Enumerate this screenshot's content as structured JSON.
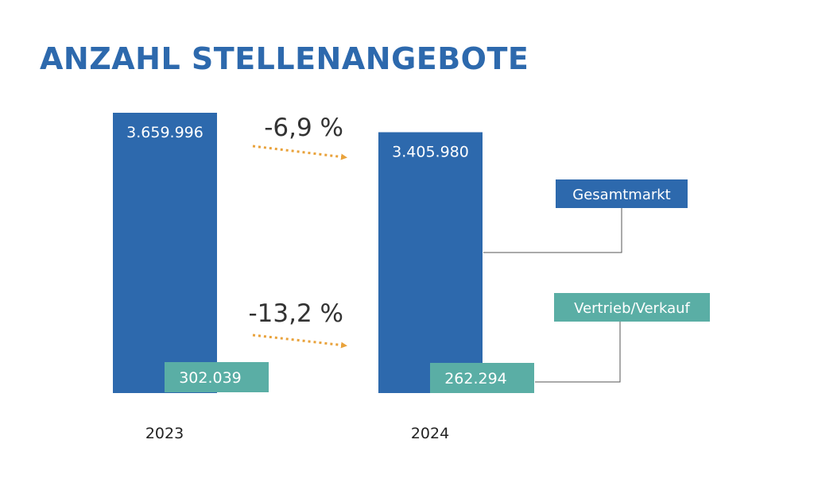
{
  "title": "ANZAHL STELLENANGEBOTE",
  "colors": {
    "title": "#2d69ad",
    "total": "#2d69ad",
    "sales": "#5aaea5",
    "arrow": "#e9a23b",
    "connector": "#555555"
  },
  "chart_data": {
    "type": "bar",
    "categories": [
      "2023",
      "2024"
    ],
    "series": [
      {
        "name": "Gesamtmarkt",
        "values": [
          3659996,
          3405980
        ],
        "labels": [
          "3.659.996",
          "3.405.980"
        ]
      },
      {
        "name": "Vertrieb/Verkauf",
        "values": [
          302039,
          262294
        ],
        "labels": [
          "302.039",
          "262.294"
        ]
      }
    ],
    "changes": [
      {
        "series": "Gesamtmarkt",
        "label": "-6,9 %"
      },
      {
        "series": "Vertrieb/Verkauf",
        "label": "-13,2 %"
      }
    ],
    "legend": [
      "Gesamtmarkt",
      "Vertrieb/Verkauf"
    ],
    "grid": false,
    "xlabel": "",
    "ylabel": ""
  }
}
